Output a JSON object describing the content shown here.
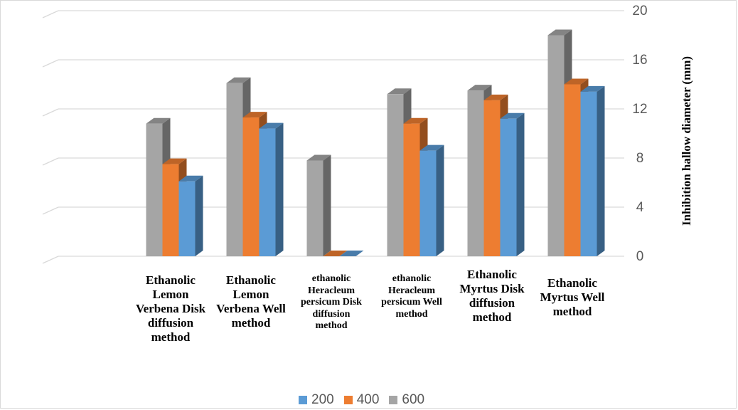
{
  "chart_data": {
    "type": "bar",
    "style": "3d-clustered-column",
    "ylabel": "Inhibition hallow diameter (mm)",
    "ylim": [
      0,
      20
    ],
    "y_ticks": [
      0,
      4,
      8,
      12,
      16,
      20
    ],
    "y_axis_side": "right",
    "grid": true,
    "legend_position": "bottom",
    "categories": [
      "Ethanolic Lemon Verbena Disk diffusion method",
      "Ethanolic Lemon Verbena Well method",
      "ethanolic Heracleum persicum Disk diffusion method",
      "ethanolic Heracleum persicum Well method",
      "Ethanolic Myrtus Disk diffusion method",
      "Ethanolic Myrtus Well method"
    ],
    "series": [
      {
        "name": "600",
        "color": "#a5a5a5",
        "values": [
          10.8,
          14.1,
          7.8,
          13.2,
          13.5,
          18.0
        ]
      },
      {
        "name": "400",
        "color": "#ed7d31",
        "values": [
          7.5,
          11.3,
          0.0,
          10.8,
          12.7,
          14.0
        ]
      },
      {
        "name": "200",
        "color": "#5b9bd5",
        "values": [
          6.1,
          10.4,
          0.0,
          8.6,
          11.2,
          13.4
        ]
      }
    ],
    "legend_order": [
      "200",
      "400",
      "600"
    ]
  }
}
